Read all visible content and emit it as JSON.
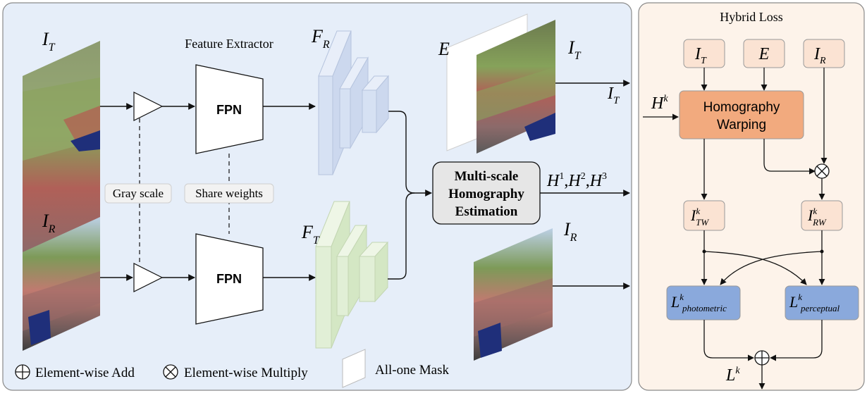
{
  "left_panel": {
    "feature_extractor_label": "Feature Extractor",
    "fpn_label": "FPN",
    "gray_scale_label": "Gray scale",
    "share_weights_label": "Share weights",
    "estimation_label_line1": "Multi-scale",
    "estimation_label_line2": "Homography",
    "estimation_label_line3": "Estimation",
    "feature_target": {
      "base": "F",
      "sub": "R"
    },
    "feature_reference": {
      "base": "F",
      "sub": "T"
    },
    "input_target": {
      "base": "I",
      "sub": "T"
    },
    "input_reference": {
      "base": "I",
      "sub": "R"
    },
    "mask_symbol": "E",
    "output_target": {
      "base": "I",
      "sub": "T"
    },
    "homography_outputs": {
      "h": "H",
      "s1": "1",
      "s2": "2",
      "s3": "3",
      "sep": ","
    }
  },
  "legend": {
    "add_label": "Element-wise Add",
    "multiply_label": "Element-wise Multiply",
    "mask_label": "All-one Mask"
  },
  "right_panel": {
    "title": "Hybrid Loss",
    "input_it": {
      "base": "I",
      "sub": "T"
    },
    "input_e": "E",
    "input_ir": {
      "base": "I",
      "sub": "R"
    },
    "hk": {
      "base": "H",
      "sup": "k"
    },
    "warping_line1": "Homography",
    "warping_line2": "Warping",
    "itw": {
      "base": "I",
      "sup": "k",
      "sub": "TW"
    },
    "irw": {
      "base": "I",
      "sup": "k",
      "sub": "RW"
    },
    "l_photo": {
      "base": "L",
      "sup": "k",
      "sub": "photometric"
    },
    "l_percep": {
      "base": "L",
      "sup": "k",
      "sub": "perceptual"
    },
    "lk": {
      "base": "L",
      "sup": "k"
    }
  },
  "colors": {
    "left_panel_bg": "#e6eef9",
    "right_panel_bg": "#fdf3ea",
    "feature_blue": "#d6e1f3",
    "feature_green": "#e1efd6",
    "warping_orange": "#f2aa7e",
    "input_peach": "#fbe3d3",
    "loss_blue": "#8aa9dc",
    "estimation_gray": "#e6e6e6"
  }
}
